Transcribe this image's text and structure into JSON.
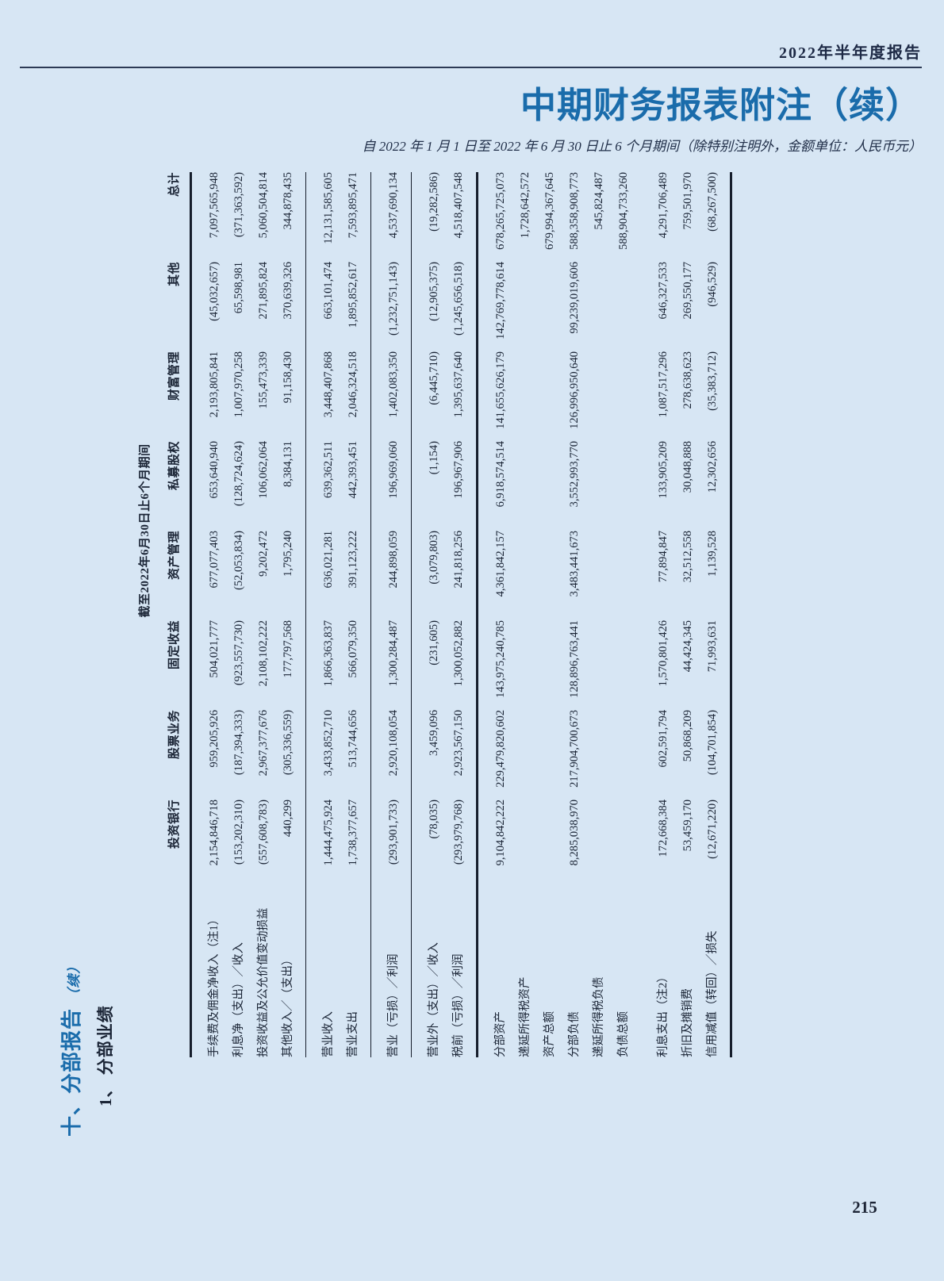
{
  "page": {
    "report_banner": "2022年半年度报告",
    "title": "中期财务报表附注（续）",
    "subtitle": "自 2022 年 1 月 1 日至 2022 年 6 月 30 日止 6 个月期间（除特别注明外，金额单位：人民币元）",
    "page_number": "215"
  },
  "section": {
    "heading": "十、分部报告",
    "heading_suffix": "（续）",
    "subheading": "1、 分部业绩"
  },
  "table": {
    "period_header": "截至2022年6月30日止6个月期间",
    "columns": [
      "投资银行",
      "股票业务",
      "固定收益",
      "资产管理",
      "私募股权",
      "财富管理",
      "其他",
      "总计"
    ],
    "groups": [
      {
        "rule_after": "thin",
        "rows": [
          {
            "label": "手续费及佣金净收入（注1）",
            "values": [
              "2,154,846,718",
              "959,205,926",
              "504,021,777",
              "677,077,403",
              "653,640,940",
              "2,193,805,841",
              "(45,032,657)",
              "7,097,565,948"
            ]
          },
          {
            "label": "利息净（支出）／收入",
            "values": [
              "(153,202,310)",
              "(187,394,333)",
              "(923,557,730)",
              "(52,053,834)",
              "(128,724,624)",
              "1,007,970,258",
              "65,598,981",
              "(371,363,592)"
            ]
          },
          {
            "label": "投资收益及公允价值变动损益",
            "values": [
              "(557,608,783)",
              "2,967,377,676",
              "2,108,102,222",
              "9,202,472",
              "106,062,064",
              "155,473,339",
              "271,895,824",
              "5,060,504,814"
            ]
          },
          {
            "label": "其他收入／（支出）",
            "values": [
              "440,299",
              "(305,336,559)",
              "177,797,568",
              "1,795,240",
              "8,384,131",
              "91,158,430",
              "370,639,326",
              "344,878,435"
            ]
          }
        ]
      },
      {
        "rule_after": "thin",
        "rows": [
          {
            "label": "营业收入",
            "values": [
              "1,444,475,924",
              "3,433,852,710",
              "1,866,363,837",
              "636,021,281",
              "639,362,511",
              "3,448,407,868",
              "663,101,474",
              "12,131,585,605"
            ]
          },
          {
            "label": "营业支出",
            "values": [
              "1,738,377,657",
              "513,744,656",
              "566,079,350",
              "391,123,222",
              "442,393,451",
              "2,046,324,518",
              "1,895,852,617",
              "7,593,895,471"
            ]
          }
        ]
      },
      {
        "rule_after": "thin",
        "rows": [
          {
            "label": "营业（亏损）／利润",
            "values": [
              "(293,901,733)",
              "2,920,108,054",
              "1,300,284,487",
              "244,898,059",
              "196,969,060",
              "1,402,083,350",
              "(1,232,751,143)",
              "4,537,690,134"
            ]
          }
        ]
      },
      {
        "rule_after": "thick",
        "rows": [
          {
            "label": "营业外（支出）／收入",
            "values": [
              "(78,035)",
              "3,459,096",
              "(231,605)",
              "(3,079,803)",
              "(1,154)",
              "(6,445,710)",
              "(12,905,375)",
              "(19,282,586)"
            ]
          },
          {
            "label": "税前（亏损）／利润",
            "values": [
              "(293,979,768)",
              "2,923,567,150",
              "1,300,052,882",
              "241,818,256",
              "196,967,906",
              "1,395,637,640",
              "(1,245,656,518)",
              "4,518,407,548"
            ]
          }
        ]
      },
      {
        "rule_after": "none",
        "rows": [
          {
            "label": "分部资产",
            "values": [
              "9,104,842,222",
              "229,479,820,602",
              "143,975,240,785",
              "4,361,842,157",
              "6,918,574,514",
              "141,655,626,179",
              "142,769,778,614",
              "678,265,725,073"
            ]
          },
          {
            "label": "递延所得税资产",
            "values": [
              "",
              "",
              "",
              "",
              "",
              "",
              "",
              "1,728,642,572"
            ]
          },
          {
            "label": "资产总额",
            "values": [
              "",
              "",
              "",
              "",
              "",
              "",
              "",
              "679,994,367,645"
            ]
          },
          {
            "label": "分部负债",
            "values": [
              "8,285,038,970",
              "217,904,700,673",
              "128,896,763,441",
              "3,483,441,673",
              "3,552,993,770",
              "126,996,950,640",
              "99,239,019,606",
              "588,358,908,773"
            ]
          },
          {
            "label": "递延所得税负债",
            "values": [
              "",
              "",
              "",
              "",
              "",
              "",
              "",
              "545,824,487"
            ]
          },
          {
            "label": "负债总额",
            "values": [
              "",
              "",
              "",
              "",
              "",
              "",
              "",
              "588,904,733,260"
            ]
          }
        ]
      },
      {
        "rule_after": "thick",
        "rows": [
          {
            "label": "利息支出（注2）",
            "values": [
              "172,668,384",
              "602,591,794",
              "1,570,801,426",
              "77,894,847",
              "133,905,209",
              "1,087,517,296",
              "646,327,533",
              "4,291,706,489"
            ]
          },
          {
            "label": "折旧及摊销费",
            "values": [
              "53,459,170",
              "50,868,209",
              "44,424,345",
              "32,512,558",
              "30,048,888",
              "278,638,623",
              "269,550,177",
              "759,501,970"
            ]
          },
          {
            "label": "信用减值（转回）／损失",
            "values": [
              "(12,671,220)",
              "(104,701,854)",
              "71,993,631",
              "1,139,528",
              "12,302,656",
              "(35,383,712)",
              "(946,529)",
              "(68,267,500)"
            ]
          }
        ]
      }
    ]
  },
  "colors": {
    "background": "#d7e6f4",
    "accent_blue": "#1a6cab",
    "ink": "#1b2536"
  }
}
